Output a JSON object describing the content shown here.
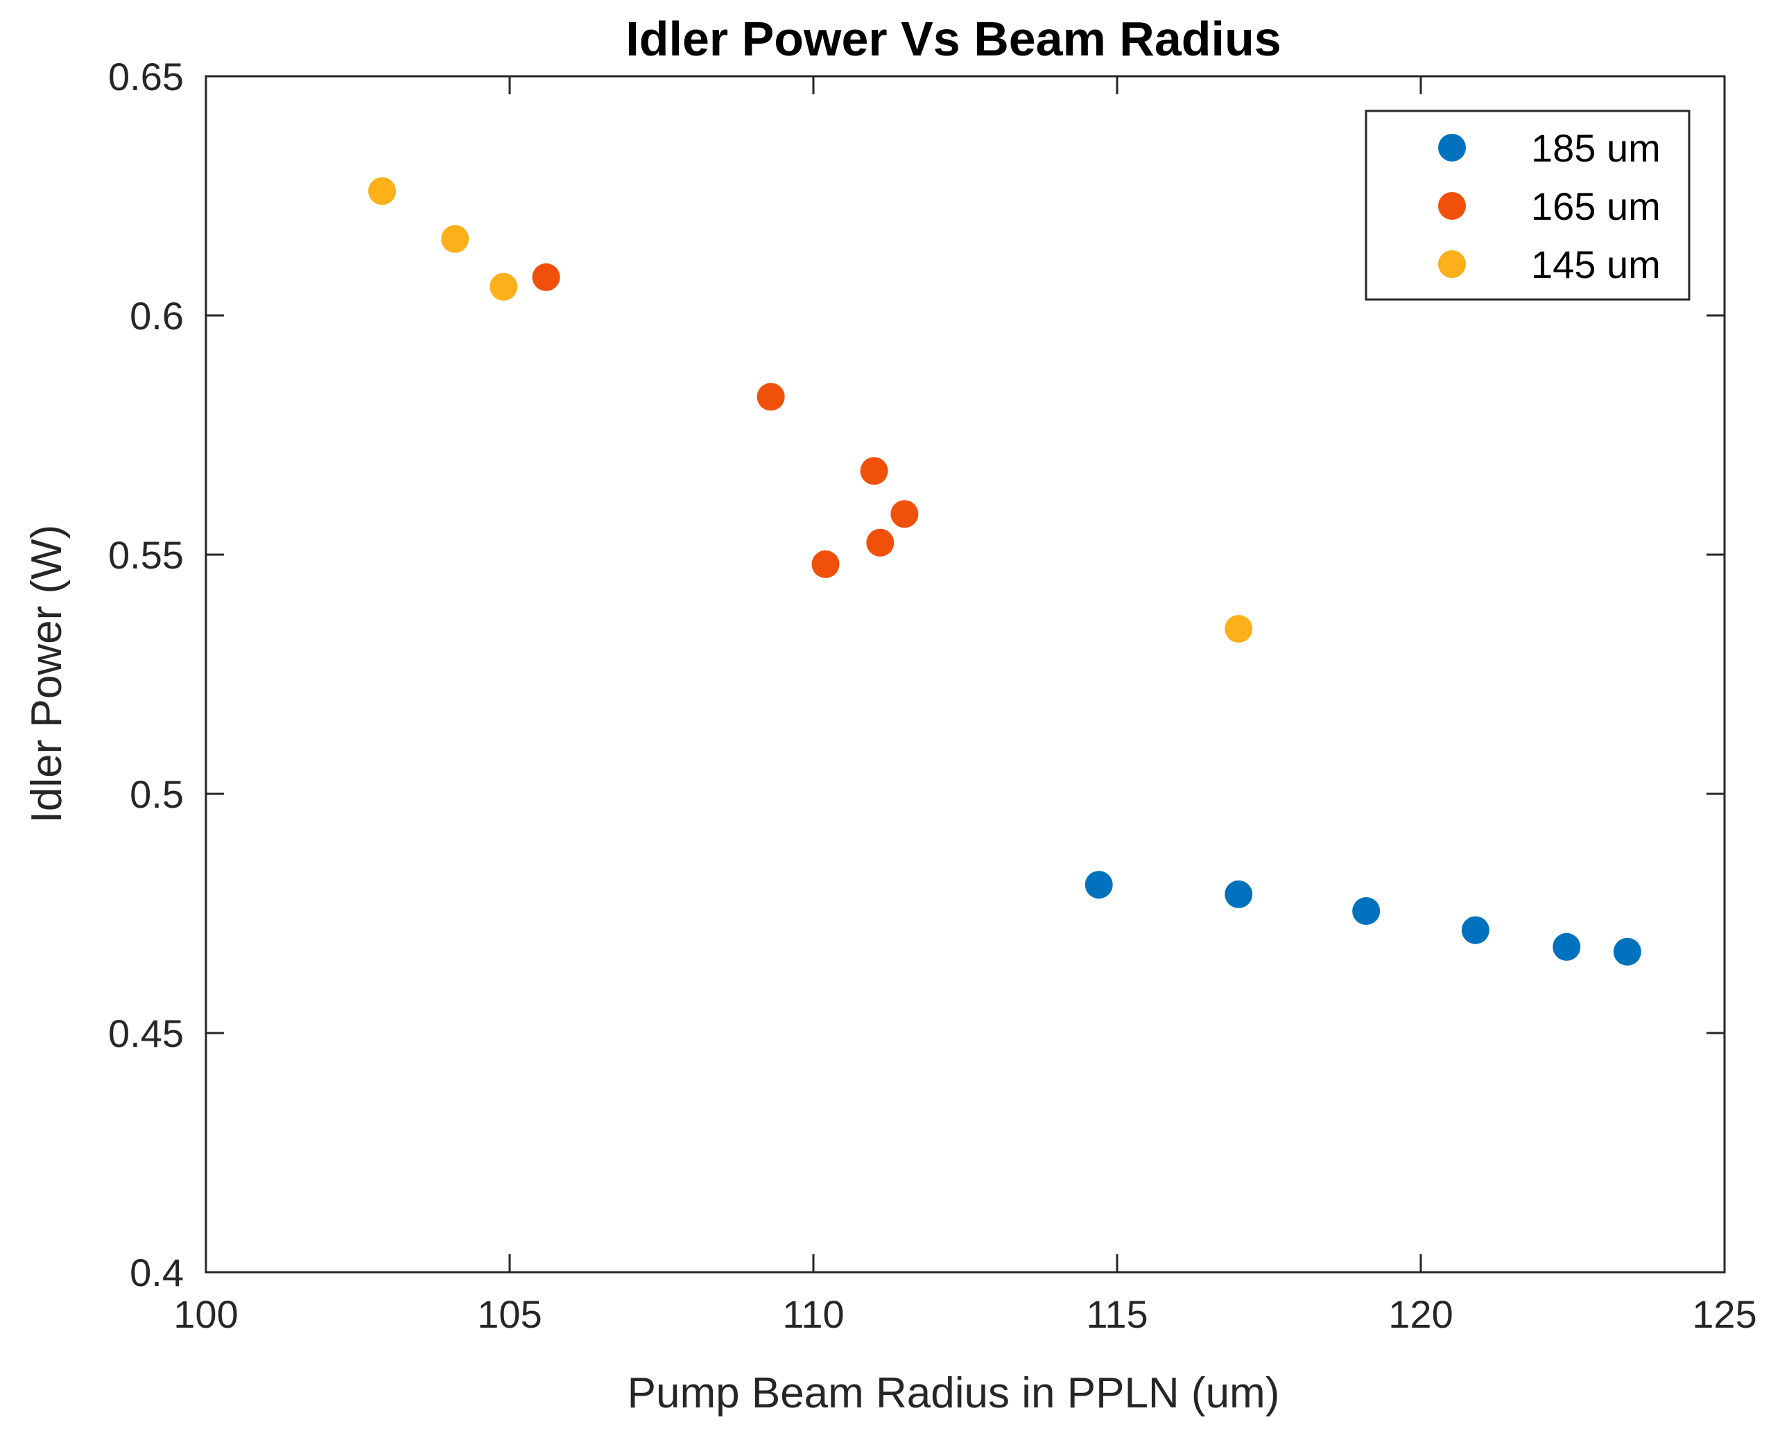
{
  "chart_data": {
    "type": "scatter",
    "title": "Idler Power Vs Beam Radius",
    "xlabel": "Pump Beam Radius in PPLN (um)",
    "ylabel": "Idler Power (W)",
    "xlim": [
      100,
      125
    ],
    "ylim": [
      0.4,
      0.65
    ],
    "xticks": [
      100,
      105,
      110,
      115,
      120,
      125
    ],
    "xtick_labels": [
      "100",
      "105",
      "110",
      "115",
      "120",
      "125"
    ],
    "yticks": [
      0.4,
      0.45,
      0.5,
      0.55,
      0.6,
      0.65
    ],
    "ytick_labels": [
      "0.4",
      "0.45",
      "0.5",
      "0.55",
      "0.6",
      "0.65"
    ],
    "grid": false,
    "legend_position": "top-right",
    "series": [
      {
        "name": "185 um",
        "color": "#0072BD",
        "x": [
          114.7,
          117.0,
          119.1,
          120.9,
          122.4,
          123.4
        ],
        "y": [
          0.481,
          0.479,
          0.4755,
          0.4715,
          0.468,
          0.467
        ]
      },
      {
        "name": "165 um",
        "color": "#F0500A",
        "x": [
          105.6,
          109.3,
          111.0,
          111.5,
          111.1,
          110.2
        ],
        "y": [
          0.608,
          0.583,
          0.5675,
          0.5585,
          0.5525,
          0.548
        ]
      },
      {
        "name": "145 um",
        "color": "#FDB01A",
        "x": [
          102.9,
          104.1,
          104.9,
          117.0
        ],
        "y": [
          0.626,
          0.616,
          0.606,
          0.5345
        ]
      }
    ]
  }
}
